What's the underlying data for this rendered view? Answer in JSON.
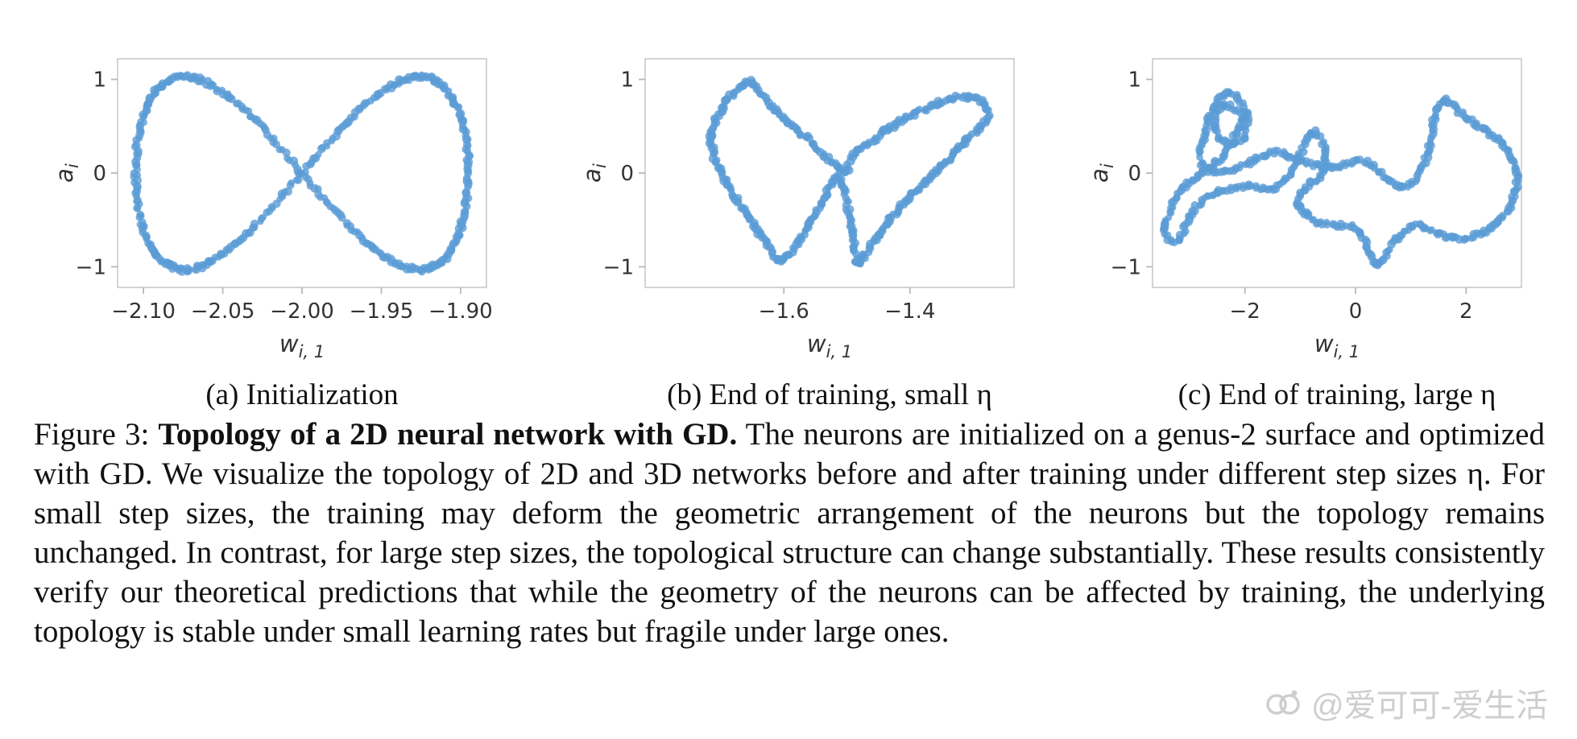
{
  "page": {
    "background": "#ffffff"
  },
  "colors": {
    "dot": "#5b9cd6",
    "spine": "#c9c9c9",
    "tick": "#b8b8b8",
    "tick_label": "#333333",
    "axis_label": "#333333",
    "caption_text": "#111111",
    "watermark": "#cccccc"
  },
  "caption": {
    "prefix": "Figure 3: ",
    "bold": "Topology of a 2D neural network with GD.",
    "body": " The neurons are initialized on a genus-2 surface and optimized with GD. We visualize the topology of 2D and 3D networks before and after training under different step sizes η. For small step sizes, the training may deform the geometric arrangement of the neurons but the topology remains unchanged. In contrast, for large step sizes, the topological structure can change substantially. These results consistently verify our theoretical predictions that while the geometry of the neurons can be affected by training, the underlying topology is stable under small learning rates but fragile under large ones."
  },
  "watermark": {
    "text": "@爱可可-爱生活"
  },
  "chart_data": [
    {
      "type": "scatter",
      "panel": "a",
      "subcaption": "(a) Initialization",
      "xlabel_main": "w",
      "xlabel_sub": "i, 1",
      "ylabel_main": "a",
      "ylabel_sub": "i",
      "xlim": [
        -2.1163,
        -1.8837
      ],
      "ylim": [
        -1.22,
        1.22
      ],
      "xticks": [
        -2.1,
        -2.05,
        -2.0,
        -1.95,
        -1.9
      ],
      "xtick_labels": [
        "−2.10",
        "−2.05",
        "−2.00",
        "−1.95",
        "−1.90"
      ],
      "yticks": [
        -1,
        0,
        1
      ],
      "ytick_labels": [
        "−1",
        "0",
        "1"
      ],
      "n_points": 430,
      "marker": {
        "color": "#5b9cd6",
        "radius": 4.2,
        "opacity": 0.8
      },
      "generator": {
        "kind": "lemniscate",
        "cx": -2.0,
        "rx": 0.105,
        "ry": 1.03
      }
    },
    {
      "type": "scatter",
      "panel": "b",
      "subcaption": "(b) End of training, small η",
      "xlabel_main": "w",
      "xlabel_sub": "i, 1",
      "ylabel_main": "a",
      "ylabel_sub": "i",
      "xlim": [
        -1.82,
        -1.235
      ],
      "ylim": [
        -1.22,
        1.22
      ],
      "xticks": [
        -1.6,
        -1.4
      ],
      "xtick_labels": [
        "−1.6",
        "−1.4"
      ],
      "yticks": [
        -1,
        0,
        1
      ],
      "ytick_labels": [
        "−1",
        "0",
        "1"
      ],
      "n_points": 440,
      "marker": {
        "color": "#5b9cd6",
        "radius": 4.2,
        "opacity": 0.8
      },
      "generator": {
        "kind": "spline",
        "closed": true,
        "control_points": [
          [
            -1.505,
            0.02
          ],
          [
            -1.565,
            0.38
          ],
          [
            -1.625,
            0.74
          ],
          [
            -1.655,
            0.97
          ],
          [
            -1.695,
            0.72
          ],
          [
            -1.715,
            0.38
          ],
          [
            -1.7,
            0.02
          ],
          [
            -1.665,
            -0.38
          ],
          [
            -1.625,
            -0.78
          ],
          [
            -1.605,
            -0.94
          ],
          [
            -1.575,
            -0.72
          ],
          [
            -1.545,
            -0.38
          ],
          [
            -1.515,
            -0.04
          ],
          [
            -1.497,
            -0.42
          ],
          [
            -1.487,
            -0.8
          ],
          [
            -1.483,
            -0.96
          ],
          [
            -1.455,
            -0.7
          ],
          [
            -1.415,
            -0.36
          ],
          [
            -1.365,
            -0.02
          ],
          [
            -1.315,
            0.32
          ],
          [
            -1.278,
            0.58
          ],
          [
            -1.285,
            0.76
          ],
          [
            -1.33,
            0.8
          ],
          [
            -1.395,
            0.62
          ],
          [
            -1.45,
            0.4
          ],
          [
            -1.492,
            0.18
          ]
        ]
      }
    },
    {
      "type": "scatter",
      "panel": "c",
      "subcaption": "(c) End of training, large η",
      "xlabel_main": "w",
      "xlabel_sub": "i, 1",
      "ylabel_main": "a",
      "ylabel_sub": "i",
      "xlim": [
        -3.67,
        3.0
      ],
      "ylim": [
        -1.22,
        1.22
      ],
      "xticks": [
        -2,
        0,
        2
      ],
      "xtick_labels": [
        "−2",
        "0",
        "2"
      ],
      "yticks": [
        -1,
        0,
        1
      ],
      "ytick_labels": [
        "−1",
        "0",
        "1"
      ],
      "n_points": 560,
      "marker": {
        "color": "#5b9cd6",
        "radius": 4.2,
        "opacity": 0.8
      },
      "generator": {
        "kind": "spline",
        "closed": true,
        "control_points": [
          [
            -2.8,
            0.2
          ],
          [
            -2.62,
            0.62
          ],
          [
            -2.28,
            0.85
          ],
          [
            -1.98,
            0.66
          ],
          [
            -2.02,
            0.38
          ],
          [
            -2.32,
            0.32
          ],
          [
            -2.56,
            0.5
          ],
          [
            -2.38,
            0.72
          ],
          [
            -2.05,
            0.58
          ],
          [
            -2.45,
            0.15
          ],
          [
            -2.9,
            -0.05
          ],
          [
            -3.25,
            -0.28
          ],
          [
            -3.45,
            -0.62
          ],
          [
            -3.22,
            -0.74
          ],
          [
            -3.02,
            -0.5
          ],
          [
            -2.72,
            -0.27
          ],
          [
            -2.32,
            -0.18
          ],
          [
            -1.92,
            -0.14
          ],
          [
            -1.55,
            -0.18
          ],
          [
            -1.25,
            -0.06
          ],
          [
            -1.0,
            0.22
          ],
          [
            -0.76,
            0.44
          ],
          [
            -0.55,
            0.26
          ],
          [
            -0.6,
            -0.02
          ],
          [
            -0.85,
            -0.13
          ],
          [
            -1.05,
            -0.32
          ],
          [
            -0.75,
            -0.5
          ],
          [
            -0.35,
            -0.55
          ],
          [
            0.05,
            -0.6
          ],
          [
            0.38,
            -0.97
          ],
          [
            0.72,
            -0.73
          ],
          [
            1.05,
            -0.56
          ],
          [
            1.4,
            -0.62
          ],
          [
            1.85,
            -0.7
          ],
          [
            2.32,
            -0.63
          ],
          [
            2.72,
            -0.42
          ],
          [
            2.92,
            -0.08
          ],
          [
            2.74,
            0.26
          ],
          [
            2.38,
            0.44
          ],
          [
            1.98,
            0.6
          ],
          [
            1.62,
            0.78
          ],
          [
            1.44,
            0.62
          ],
          [
            1.34,
            0.28
          ],
          [
            1.12,
            -0.02
          ],
          [
            0.84,
            -0.16
          ],
          [
            0.54,
            -0.04
          ],
          [
            0.26,
            0.1
          ],
          [
            -0.05,
            0.12
          ],
          [
            -0.45,
            0.06
          ],
          [
            -0.95,
            0.12
          ],
          [
            -1.45,
            0.22
          ],
          [
            -1.9,
            0.12
          ],
          [
            -2.35,
            0.02
          ],
          [
            -2.68,
            0.05
          ]
        ]
      }
    }
  ]
}
